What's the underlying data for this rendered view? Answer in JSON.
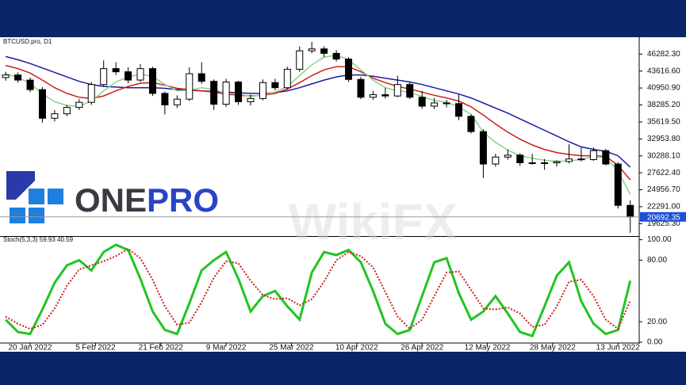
{
  "chart_data": [
    {
      "type": "candlestick",
      "title": "BTCUSD.pro, D1",
      "x": [
        "2022-01-14",
        "2022-01-17",
        "2022-01-20",
        "2022-01-23",
        "2022-01-26",
        "2022-01-29",
        "2022-02-01",
        "2022-02-04",
        "2022-02-07",
        "2022-02-10",
        "2022-02-13",
        "2022-02-16",
        "2022-02-19",
        "2022-02-22",
        "2022-02-25",
        "2022-02-28",
        "2022-03-03",
        "2022-03-06",
        "2022-03-09",
        "2022-03-12",
        "2022-03-15",
        "2022-03-18",
        "2022-03-21",
        "2022-03-24",
        "2022-03-27",
        "2022-03-30",
        "2022-04-02",
        "2022-04-05",
        "2022-04-08",
        "2022-04-11",
        "2022-04-14",
        "2022-04-17",
        "2022-04-20",
        "2022-04-23",
        "2022-04-26",
        "2022-04-29",
        "2022-05-02",
        "2022-05-05",
        "2022-05-08",
        "2022-05-11",
        "2022-05-14",
        "2022-05-17",
        "2022-05-20",
        "2022-05-23",
        "2022-05-26",
        "2022-05-29",
        "2022-06-01",
        "2022-06-04",
        "2022-06-07",
        "2022-06-10",
        "2022-06-13",
        "2022-06-16"
      ],
      "open": [
        42600,
        43000,
        42200,
        40700,
        36200,
        36900,
        37900,
        38700,
        41500,
        44000,
        43500,
        42200,
        44000,
        40100,
        38300,
        39200,
        43200,
        42000,
        38400,
        41900,
        38800,
        39300,
        41800,
        41000,
        43900,
        46800,
        47100,
        46400,
        45500,
        42300,
        39500,
        39900,
        39700,
        41500,
        39500,
        38100,
        38600,
        38500,
        36500,
        34100,
        29000,
        30100,
        30400,
        29200,
        29100,
        29200,
        29400,
        29800,
        29700,
        31100,
        29000,
        22500
      ],
      "high": [
        43500,
        43400,
        42600,
        41100,
        37500,
        38300,
        39200,
        41900,
        45300,
        45000,
        44200,
        44700,
        44300,
        40400,
        39800,
        44200,
        45000,
        42300,
        42400,
        42100,
        39900,
        42300,
        42400,
        44300,
        47500,
        48200,
        47500,
        46900,
        45800,
        42700,
        40500,
        41000,
        42900,
        41800,
        40500,
        39400,
        39100,
        39900,
        36800,
        34500,
        30600,
        31300,
        30700,
        30600,
        29800,
        29600,
        32100,
        31600,
        31600,
        31400,
        29300,
        23300
      ],
      "low": [
        42100,
        41800,
        40300,
        35500,
        35700,
        36500,
        37500,
        38300,
        41200,
        43000,
        41700,
        41900,
        39700,
        36800,
        37800,
        38900,
        41600,
        37500,
        38000,
        38300,
        38200,
        39000,
        40600,
        40700,
        43500,
        46400,
        45800,
        45100,
        41900,
        39200,
        39100,
        39300,
        39500,
        39200,
        37700,
        37600,
        37900,
        35900,
        33800,
        26800,
        28600,
        29700,
        28700,
        28900,
        28100,
        28600,
        29100,
        29400,
        29500,
        28800,
        22000,
        18200
      ],
      "close": [
        43000,
        42200,
        40700,
        36200,
        36900,
        37900,
        38700,
        41500,
        44000,
        43500,
        42200,
        44000,
        40100,
        38300,
        39200,
        43200,
        42000,
        38400,
        41900,
        38800,
        39300,
        41800,
        41000,
        43900,
        46800,
        47100,
        46400,
        45500,
        42300,
        39500,
        39900,
        39700,
        41500,
        39500,
        38100,
        38600,
        38500,
        36500,
        34100,
        29000,
        30100,
        30400,
        29200,
        29100,
        29200,
        29400,
        29800,
        29700,
        31100,
        29000,
        22500,
        20692.35
      ],
      "up_color": "#ffffff",
      "down_color": "#000000",
      "wick_color": "#000000",
      "series": [
        {
          "color": "#1a1aa6",
          "values": [
            45900,
            45400,
            44800,
            44100,
            43400,
            42700,
            42000,
            41500,
            41200,
            41100,
            41000,
            41000,
            41000,
            40900,
            40700,
            40600,
            40500,
            40400,
            40300,
            40200,
            40100,
            40100,
            40200,
            40500,
            41000,
            41600,
            42200,
            42700,
            43000,
            43000,
            42800,
            42500,
            42200,
            41900,
            41500,
            41000,
            40500,
            40000,
            39400,
            38600,
            37800,
            37000,
            36100,
            35200,
            34300,
            33400,
            32500,
            31700,
            31300,
            31000,
            30300,
            28500
          ]
        },
        {
          "color": "#d01c1c",
          "values": [
            44500,
            44000,
            43300,
            42200,
            41000,
            40100,
            39500,
            39300,
            39700,
            40500,
            41200,
            41700,
            41800,
            41400,
            40900,
            40700,
            40500,
            40300,
            40000,
            39800,
            39700,
            39800,
            40100,
            40800,
            41800,
            42900,
            43800,
            44300,
            44300,
            43500,
            42500,
            41800,
            41200,
            40800,
            40300,
            39800,
            39400,
            38900,
            38000,
            36700,
            35300,
            34000,
            32900,
            32000,
            31300,
            30800,
            30500,
            30300,
            30300,
            30200,
            28800,
            26500
          ]
        },
        {
          "color": "#86d486",
          "values": [
            43200,
            42600,
            41700,
            40000,
            38800,
            38200,
            38100,
            38900,
            40500,
            41900,
            42700,
            43100,
            42800,
            41500,
            40500,
            40600,
            41000,
            40700,
            40100,
            40000,
            39600,
            39900,
            40300,
            41200,
            42900,
            44600,
            45800,
            46100,
            45400,
            43800,
            42200,
            41000,
            40500,
            40300,
            39600,
            39000,
            38700,
            38000,
            36800,
            34000,
            32400,
            31200,
            30300,
            29900,
            29600,
            29400,
            29500,
            29700,
            30200,
            30000,
            27900,
            24200
          ]
        }
      ],
      "last_price": 20692.35,
      "last_price_color": "#1c4fd8",
      "xlim": [
        "2022-01-13",
        "2022-06-18"
      ],
      "ylim": [
        17800,
        48560
      ],
      "yticks": [
        {
          "value": 46282.3,
          "label": "46282.30"
        },
        {
          "value": 43616.6,
          "label": "43616.60"
        },
        {
          "value": 40950.9,
          "label": "40950.90"
        },
        {
          "value": 38285.2,
          "label": "38285.20"
        },
        {
          "value": 35619.5,
          "label": "35619.50"
        },
        {
          "value": 32953.8,
          "label": "32953.80"
        },
        {
          "value": 30288.1,
          "label": "30288.10"
        },
        {
          "value": 27622.4,
          "label": "27622.40"
        },
        {
          "value": 24956.7,
          "label": "24956.70"
        },
        {
          "value": 22291,
          "label": "22291.00"
        },
        {
          "value": 19625.3,
          "label": "19625.30"
        }
      ]
    },
    {
      "type": "line",
      "title": "Stoch(5,3,3) 59.93 40.59",
      "x": [
        "2022-01-14",
        "2022-01-17",
        "2022-01-20",
        "2022-01-23",
        "2022-01-26",
        "2022-01-29",
        "2022-02-01",
        "2022-02-04",
        "2022-02-07",
        "2022-02-10",
        "2022-02-13",
        "2022-02-16",
        "2022-02-19",
        "2022-02-22",
        "2022-02-25",
        "2022-02-28",
        "2022-03-03",
        "2022-03-06",
        "2022-03-09",
        "2022-03-12",
        "2022-03-15",
        "2022-03-18",
        "2022-03-21",
        "2022-03-24",
        "2022-03-27",
        "2022-03-30",
        "2022-04-02",
        "2022-04-05",
        "2022-04-08",
        "2022-04-11",
        "2022-04-14",
        "2022-04-17",
        "2022-04-20",
        "2022-04-23",
        "2022-04-26",
        "2022-04-29",
        "2022-05-02",
        "2022-05-05",
        "2022-05-08",
        "2022-05-11",
        "2022-05-14",
        "2022-05-17",
        "2022-05-20",
        "2022-05-23",
        "2022-05-26",
        "2022-05-29",
        "2022-06-01",
        "2022-06-04",
        "2022-06-07",
        "2022-06-10",
        "2022-06-13",
        "2022-06-16"
      ],
      "series": [
        {
          "color": "#22c422",
          "style": "solid",
          "values": [
            22,
            10,
            8,
            32,
            58,
            75,
            80,
            70,
            88,
            95,
            90,
            62,
            30,
            12,
            8,
            38,
            70,
            80,
            88,
            62,
            30,
            45,
            50,
            35,
            22,
            68,
            88,
            85,
            90,
            78,
            50,
            18,
            8,
            12,
            45,
            78,
            82,
            48,
            22,
            30,
            45,
            28,
            10,
            6,
            35,
            65,
            78,
            40,
            18,
            8,
            12,
            59.93
          ]
        },
        {
          "color": "#cc2020",
          "style": "dotted",
          "values": [
            25,
            18,
            13,
            17,
            33,
            55,
            71,
            75,
            79,
            84,
            91,
            82,
            61,
            35,
            17,
            19,
            39,
            63,
            79,
            77,
            60,
            46,
            42,
            43,
            36,
            42,
            59,
            80,
            88,
            84,
            73,
            49,
            25,
            13,
            22,
            45,
            68,
            69,
            51,
            33,
            32,
            34,
            28,
            15,
            17,
            35,
            59,
            61,
            45,
            22,
            13,
            40.59
          ]
        }
      ],
      "xlim": [
        "2022-01-13",
        "2022-06-18"
      ],
      "xticks": [
        {
          "value": "2022-01-20",
          "label": "20 Jan 2022"
        },
        {
          "value": "2022-02-05",
          "label": "5 Feb 2022"
        },
        {
          "value": "2022-02-21",
          "label": "21 Feb 2022"
        },
        {
          "value": "2022-03-09",
          "label": "9 Mar 2022"
        },
        {
          "value": "2022-03-25",
          "label": "25 Mar 2022"
        },
        {
          "value": "2022-04-10",
          "label": "10 Apr 2022"
        },
        {
          "value": "2022-04-26",
          "label": "26 Apr 2022"
        },
        {
          "value": "2022-05-12",
          "label": "12 May 2022"
        },
        {
          "value": "2022-05-28",
          "label": "28 May 2022"
        },
        {
          "value": "2022-06-13",
          "label": "13 Jun 2022"
        }
      ],
      "ylim": [
        0,
        102
      ],
      "yticks": [
        {
          "value": 100,
          "label": "100.00"
        },
        {
          "value": 80,
          "label": "80.00"
        },
        {
          "value": 20,
          "label": "20.00"
        },
        {
          "value": 0,
          "label": "0.00"
        }
      ]
    }
  ],
  "logo": {
    "part1": "ONE",
    "part2": "PRO"
  },
  "watermark": "WikiFX"
}
